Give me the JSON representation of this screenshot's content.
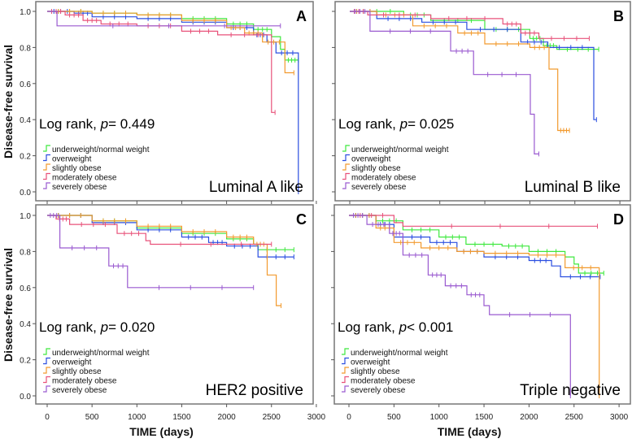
{
  "chart_data": {
    "type": "line",
    "subtype": "kaplan-meier",
    "ylabel": "Disease-free survival",
    "xlabel": "TIME (days)",
    "xlim": [
      0,
      3000
    ],
    "ylim": [
      0,
      1
    ],
    "xticks": [
      "0",
      "500",
      "1000",
      "1500",
      "2000",
      "2500",
      "3000"
    ],
    "yticks": [
      "0.0",
      "0.2",
      "0.4",
      "0.6",
      "0.8",
      "1.0"
    ],
    "legend_placement": "bottom-left",
    "legend": [
      "underweight/normal weight",
      "overweight",
      "slightly obese",
      "moderately obese",
      "severely obese"
    ],
    "colors": [
      "#3ee83e",
      "#2a4ee0",
      "#f29a2e",
      "#e8527a",
      "#9a5ad0"
    ],
    "panels": [
      {
        "letter": "A",
        "subtitle": "Luminal A like",
        "stat_prefix": "Log rank, ",
        "stat_p": "p",
        "stat_value": "= 0.449",
        "series": [
          {
            "name": "underweight/normal weight",
            "points": [
              [
                0,
                1
              ],
              [
                500,
                0.99
              ],
              [
                1000,
                0.98
              ],
              [
                1500,
                0.96
              ],
              [
                2000,
                0.93
              ],
              [
                2300,
                0.9
              ],
              [
                2500,
                0.86
              ],
              [
                2600,
                0.79
              ],
              [
                2650,
                0.73
              ],
              [
                2800,
                0.73
              ]
            ]
          },
          {
            "name": "overweight",
            "points": [
              [
                0,
                1
              ],
              [
                300,
                0.99
              ],
              [
                500,
                0.97
              ],
              [
                1000,
                0.96
              ],
              [
                1500,
                0.94
              ],
              [
                2000,
                0.91
              ],
              [
                2300,
                0.87
              ],
              [
                2450,
                0.83
              ],
              [
                2550,
                0.77
              ],
              [
                2800,
                0.77
              ],
              [
                2800,
                0
              ]
            ]
          },
          {
            "name": "slightly obese",
            "points": [
              [
                0,
                1
              ],
              [
                500,
                0.99
              ],
              [
                1000,
                0.98
              ],
              [
                1500,
                0.95
              ],
              [
                2000,
                0.91
              ],
              [
                2200,
                0.88
              ],
              [
                2400,
                0.83
              ],
              [
                2650,
                0.66
              ],
              [
                2750,
                0.66
              ]
            ]
          },
          {
            "name": "moderately obese",
            "points": [
              [
                0,
                1
              ],
              [
                200,
                0.98
              ],
              [
                400,
                0.95
              ],
              [
                600,
                0.93
              ],
              [
                1000,
                0.92
              ],
              [
                1500,
                0.89
              ],
              [
                1900,
                0.87
              ],
              [
                2500,
                0.44
              ],
              [
                2540,
                0.44
              ]
            ]
          },
          {
            "name": "severely obese",
            "points": [
              [
                0,
                1
              ],
              [
                110,
                0.92
              ],
              [
                2600,
                0.92
              ]
            ]
          }
        ]
      },
      {
        "letter": "B",
        "subtitle": "Luminal B like",
        "stat_prefix": "Log rank, ",
        "stat_p": "p",
        "stat_value": "= 0.025",
        "series": [
          {
            "name": "underweight/normal weight",
            "points": [
              [
                0,
                1
              ],
              [
                600,
                0.98
              ],
              [
                900,
                0.95
              ],
              [
                1500,
                0.9
              ],
              [
                2000,
                0.85
              ],
              [
                2150,
                0.81
              ],
              [
                2300,
                0.79
              ],
              [
                2765,
                0.79
              ]
            ]
          },
          {
            "name": "overweight",
            "points": [
              [
                0,
                1
              ],
              [
                300,
                0.96
              ],
              [
                800,
                0.94
              ],
              [
                1300,
                0.9
              ],
              [
                1900,
                0.83
              ],
              [
                2200,
                0.8
              ],
              [
                2710,
                0.8
              ],
              [
                2710,
                0.4
              ],
              [
                2740,
                0.4
              ]
            ]
          },
          {
            "name": "slightly obese",
            "points": [
              [
                0,
                1
              ],
              [
                300,
                0.98
              ],
              [
                700,
                0.92
              ],
              [
                1200,
                0.88
              ],
              [
                1500,
                0.82
              ],
              [
                2000,
                0.8
              ],
              [
                2213,
                0.68
              ],
              [
                2310,
                0.34
              ],
              [
                2440,
                0.34
              ]
            ]
          },
          {
            "name": "moderately obese",
            "points": [
              [
                0,
                1
              ],
              [
                200,
                0.98
              ],
              [
                900,
                0.96
              ],
              [
                1700,
                0.93
              ],
              [
                1900,
                0.88
              ],
              [
                2100,
                0.85
              ],
              [
                2660,
                0.85
              ]
            ]
          },
          {
            "name": "severely obese",
            "points": [
              [
                0,
                1
              ],
              [
                225,
                0.89
              ],
              [
                1120,
                0.78
              ],
              [
                1375,
                0.65
              ],
              [
                2005,
                0.43
              ],
              [
                2050,
                0.21
              ],
              [
                2100,
                0.21
              ]
            ]
          }
        ]
      },
      {
        "letter": "C",
        "subtitle": "HER2 positive",
        "stat_prefix": "Log rank, ",
        "stat_p": "p",
        "stat_value": "= 0.020",
        "series": [
          {
            "name": "underweight/normal weight",
            "points": [
              [
                0,
                1
              ],
              [
                500,
                0.97
              ],
              [
                1000,
                0.93
              ],
              [
                1500,
                0.9
              ],
              [
                2000,
                0.87
              ],
              [
                2300,
                0.84
              ],
              [
                2350,
                0.81
              ],
              [
                2750,
                0.81
              ]
            ]
          },
          {
            "name": "overweight",
            "points": [
              [
                0,
                1
              ],
              [
                500,
                0.96
              ],
              [
                1000,
                0.92
              ],
              [
                1500,
                0.88
              ],
              [
                1800,
                0.85
              ],
              [
                2000,
                0.83
              ],
              [
                2350,
                0.77
              ],
              [
                2750,
                0.77
              ]
            ]
          },
          {
            "name": "slightly obese",
            "points": [
              [
                0,
                1
              ],
              [
                500,
                0.97
              ],
              [
                1000,
                0.94
              ],
              [
                1500,
                0.91
              ],
              [
                2000,
                0.88
              ],
              [
                2300,
                0.84
              ],
              [
                2452,
                0.67
              ],
              [
                2553,
                0.5
              ],
              [
                2607,
                0.5
              ]
            ]
          },
          {
            "name": "moderately obese",
            "points": [
              [
                0,
                1
              ],
              [
                100,
                0.98
              ],
              [
                250,
                0.95
              ],
              [
                780,
                0.9
              ],
              [
                1100,
                0.86
              ],
              [
                1150,
                0.84
              ],
              [
                2500,
                0.84
              ]
            ]
          },
          {
            "name": "severely obese",
            "points": [
              [
                0,
                1
              ],
              [
                141,
                0.82
              ],
              [
                687,
                0.72
              ],
              [
                896,
                0.6
              ],
              [
                2300,
                0.6
              ]
            ]
          }
        ]
      },
      {
        "letter": "D",
        "subtitle": "Triple negative",
        "stat_prefix": "Log rank, ",
        "stat_p": "p",
        "stat_value": "< 0.001",
        "series": [
          {
            "name": "underweight/normal weight",
            "points": [
              [
                0,
                1
              ],
              [
                300,
                0.97
              ],
              [
                600,
                0.92
              ],
              [
                1000,
                0.88
              ],
              [
                1300,
                0.84
              ],
              [
                1700,
                0.83
              ],
              [
                2000,
                0.8
              ],
              [
                2400,
                0.77
              ],
              [
                2500,
                0.73
              ],
              [
                2550,
                0.68
              ],
              [
                2830,
                0.68
              ]
            ]
          },
          {
            "name": "overweight",
            "points": [
              [
                0,
                1
              ],
              [
                300,
                0.95
              ],
              [
                500,
                0.88
              ],
              [
                900,
                0.85
              ],
              [
                1200,
                0.8
              ],
              [
                1500,
                0.77
              ],
              [
                2000,
                0.75
              ],
              [
                2250,
                0.72
              ],
              [
                2350,
                0.66
              ],
              [
                2790,
                0.66
              ]
            ]
          },
          {
            "name": "slightly obese",
            "points": [
              [
                0,
                1
              ],
              [
                300,
                0.93
              ],
              [
                500,
                0.85
              ],
              [
                800,
                0.82
              ],
              [
                1200,
                0.8
              ],
              [
                1500,
                0.79
              ],
              [
                2000,
                0.78
              ],
              [
                2400,
                0.71
              ],
              [
                2780,
                0.71
              ],
              [
                2780,
                0
              ]
            ]
          },
          {
            "name": "moderately obese",
            "points": [
              [
                0,
                1
              ],
              [
                500,
                0.96
              ],
              [
                600,
                0.94
              ],
              [
                2760,
                0.94
              ]
            ]
          },
          {
            "name": "severely obese",
            "points": [
              [
                0,
                1
              ],
              [
                200,
                0.95
              ],
              [
                450,
                0.9
              ],
              [
                600,
                0.78
              ],
              [
                880,
                0.67
              ],
              [
                1070,
                0.61
              ],
              [
                1310,
                0.56
              ],
              [
                1500,
                0.5
              ],
              [
                1560,
                0.45
              ],
              [
                2460,
                0.45
              ],
              [
                2460,
                0
              ]
            ]
          }
        ]
      }
    ]
  }
}
